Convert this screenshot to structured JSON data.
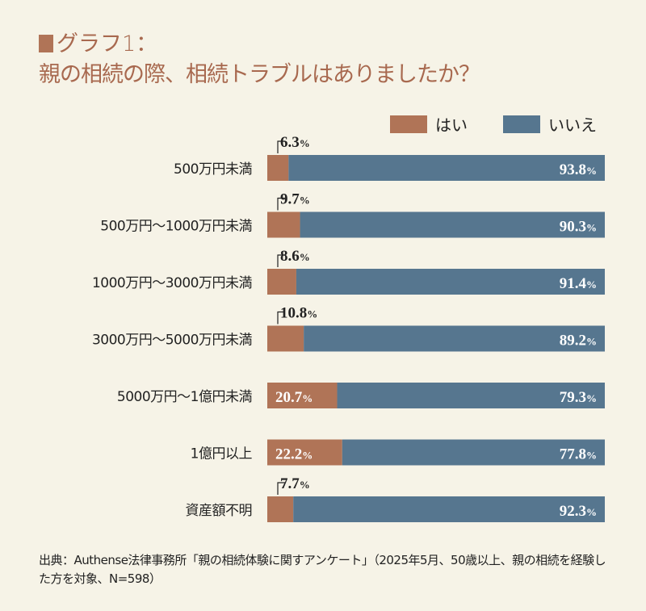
{
  "title_line1": "グラフ1：",
  "title_line2": "親の相続の際、相続トラブルはありましたか？",
  "colors": {
    "yes": "#b07457",
    "no": "#56768f",
    "background": "#f6f3e7",
    "title": "#a8694f"
  },
  "legend": {
    "yes": "はい",
    "no": "いいえ",
    "placement": "top-right"
  },
  "source": "出典：Authense法律事務所「親の相続体験に関すアンケート」（2025年5月、50歳以上、親の相続を経験した方を対象、N=598）",
  "chart_data": {
    "type": "bar",
    "orientation": "horizontal-stacked-100",
    "categories": [
      "500万円未満",
      "500万円〜1000万円未満",
      "1000万円〜3000万円未満",
      "3000万円〜5000万円未満",
      "5000万円〜1億円未満",
      "1億円以上",
      "資産額不明"
    ],
    "series": [
      {
        "name": "はい",
        "values": [
          6.3,
          9.7,
          8.6,
          10.8,
          20.7,
          22.2,
          7.7
        ]
      },
      {
        "name": "いいえ",
        "values": [
          93.8,
          90.3,
          91.4,
          89.2,
          79.3,
          77.8,
          92.3
        ]
      }
    ],
    "unit": "%",
    "xlim": [
      0,
      100
    ],
    "grid": false
  }
}
